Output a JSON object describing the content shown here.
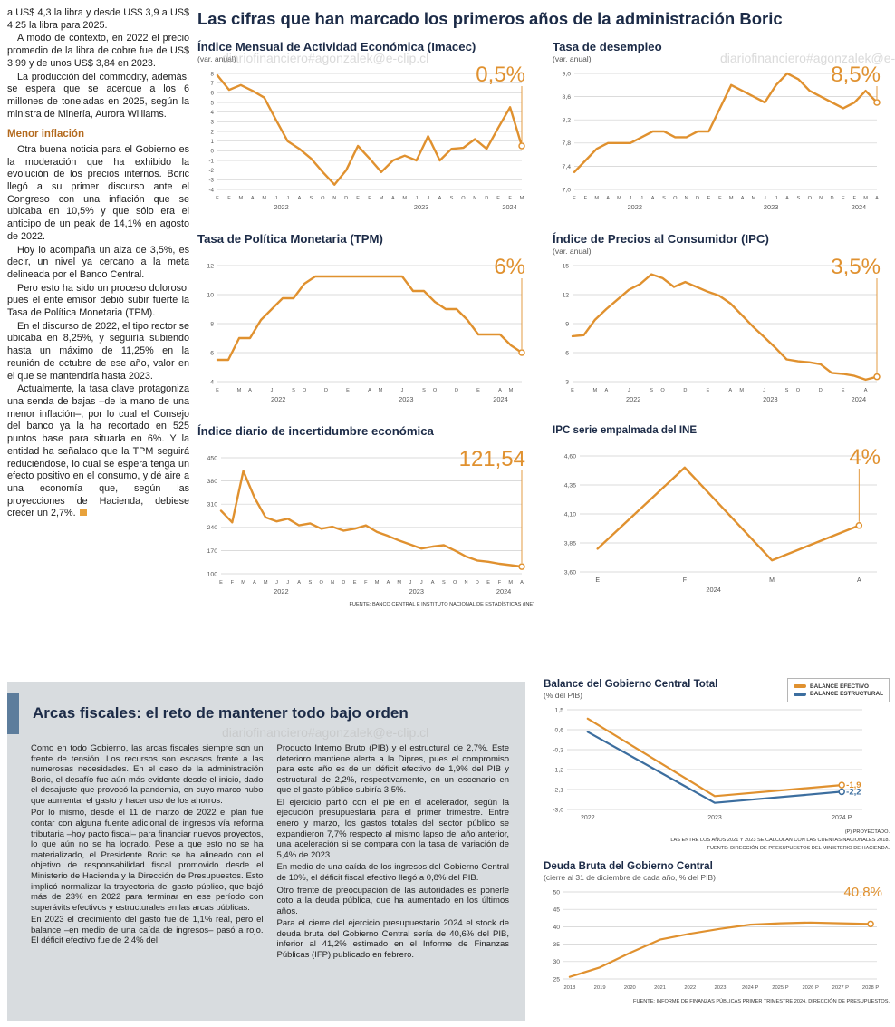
{
  "watermark": "diariofinanciero#agonzalek@e-clip.cl",
  "colors": {
    "accent_orange": "#E0912F",
    "line_blue": "#3C6E9F",
    "heading_navy": "#1C2B47",
    "subhead_orange": "#B36A1E",
    "box_gray": "#D8DCDF",
    "bar_blue": "#5D7D9C"
  },
  "article": {
    "paragraphs_top": [
      "a US$ 4,3 la libra y desde US$ 3,9 a US$ 4,25 la libra para 2025.",
      "A modo de contexto, en 2022 el precio promedio de la libra de cobre fue de US$ 3,99 y de unos US$ 3,84 en 2023.",
      "La producción del commodity, además, se espera que se acerque a los 6 millones de toneladas en 2025, según la ministra de Minería, Aurora Williams."
    ],
    "subheading": "Menor inflación",
    "paragraphs_bottom": [
      "Otra buena noticia para el Gobierno es la moderación que ha exhibido la evolución de los precios internos. Boric llegó a su primer discurso ante el Congreso con una inflación que se ubicaba en 10,5% y que sólo era el anticipo de un peak de 14,1% en agosto de 2022.",
      "Hoy lo acompaña un alza de 3,5%, es decir, un nivel ya cercano a la meta delineada por el Banco Central.",
      "Pero esto ha sido un proceso doloroso, pues el ente emisor debió subir fuerte la Tasa de Política Monetaria (TPM).",
      "En el discurso de 2022, el tipo rector se ubicaba en 8,25%, y seguiría subiendo hasta un máximo de 11,25% en la reunión de octubre de ese año, valor en el que se mantendría hasta 2023.",
      "Actualmente, la tasa clave protagoniza una senda de bajas –de la mano de una menor inflación–, por lo cual el Consejo del banco ya la ha recortado en 525 puntos base para situarla en 6%. Y la entidad ha señalado que la TPM seguirá reduciéndose, lo cual se espera tenga un efecto positivo en el consumo, y dé aire a una economía que, según las proyecciones de Hacienda, debiese crecer un 2,7%."
    ]
  },
  "main": {
    "title": "Las cifras que han marcado los primeros años de la administración Boric"
  },
  "fiscal": {
    "title": "Arcas fiscales: el reto de mantener todo bajo orden",
    "col1": [
      "Como en todo Gobierno, las arcas fiscales siempre son un frente de tensión. Los recursos son escasos frente a las numerosas necesidades. En el caso de la administración Boric, el desafío fue aún más evidente desde el inicio, dado el desajuste que provocó la pandemia, en cuyo marco hubo que aumentar el gasto y hacer uso de los ahorros.",
      "Por lo mismo, desde el 11 de marzo de 2022 el plan fue contar con alguna fuente adicional de ingresos vía reforma tributaria –hoy pacto fiscal– para financiar nuevos proyectos, lo que aún no se ha logrado. Pese a que esto no se ha materializado, el Presidente Boric se ha alineado con el objetivo de responsabilidad fiscal promovido desde el Ministerio de Hacienda y la Dirección de Presupuestos. Esto implicó normalizar la trayectoria del gasto público, que bajó más de 23% en 2022 para terminar en ese período con superávits efectivos y estructurales en las arcas públicas.",
      "En 2023 el crecimiento del gasto fue de 1,1% real, pero el balance –en medio de una caída de ingresos– pasó a rojo. El déficit efectivo fue de 2,4% del"
    ],
    "col2": [
      "Producto Interno Bruto (PIB) y el estructural de 2,7%. Este deterioro mantiene alerta a la Dipres, pues el compromiso para este año es de un déficit efectivo de 1,9% del PIB y estructural de 2,2%, respectivamente, en un escenario en que el gasto público subiría 3,5%.",
      "El ejercicio partió con el pie en el acelerador, según la ejecución presupuestaria para el primer trimestre. Entre enero y marzo, los gastos totales del sector público se expandieron 7,7% respecto al mismo lapso del año anterior, una aceleración si se compara con la tasa de variación de 5,4% de 2023.",
      "En medio de una caída de los ingresos del Gobierno Central de 10%, el déficit fiscal efectivo llegó a 0,8% del PIB.",
      "Otro frente de preocupación de las autoridades es ponerle coto a la deuda pública, que ha aumentado en los últimos años.",
      "Para el cierre del ejercicio presupuestario 2024 el stock de deuda bruta del Gobierno Central sería de 40,6% del PIB, inferior al 41,2% estimado en el Informe de Finanzas Públicas (IFP) publicado en febrero."
    ]
  },
  "chart_data": [
    {
      "type": "line",
      "title": "Índice Mensual de Actividad Económica (Imacec)",
      "subtitle": "(var. anual)",
      "big_value": "0,5%",
      "ymin": -4,
      "ymax": 8,
      "yticks": [
        8,
        7,
        6,
        5,
        4,
        3,
        2,
        1,
        0,
        -1,
        -2,
        -3,
        -4
      ],
      "x_labels": [
        "E",
        "F",
        "M",
        "A",
        "M",
        "J",
        "J",
        "A",
        "S",
        "O",
        "N",
        "D",
        "E",
        "F",
        "M",
        "A",
        "M",
        "J",
        "J",
        "A",
        "S",
        "O",
        "N",
        "D",
        "E",
        "F",
        "M"
      ],
      "years": [
        {
          "label": "2022",
          "pos": 0.21
        },
        {
          "label": "2023",
          "pos": 0.67
        },
        {
          "label": "2024",
          "pos": 0.96
        }
      ],
      "series": [
        {
          "name": "Imacec var. anual",
          "color": "#E0912F",
          "values": [
            7.8,
            6.3,
            6.8,
            6.2,
            5.5,
            3.2,
            1.0,
            0.2,
            -0.8,
            -2.2,
            -3.5,
            -2.0,
            0.5,
            -0.8,
            -2.2,
            -1.0,
            -0.5,
            -1.0,
            1.5,
            -1.0,
            0.2,
            0.3,
            1.2,
            0.2,
            2.4,
            4.5,
            0.5
          ]
        }
      ],
      "end_marker": true,
      "callout": true,
      "ml": 22,
      "yfs": 6.2
    },
    {
      "type": "line",
      "title": "Tasa de desempleo",
      "subtitle": "(var. anual)",
      "big_value": "8,5%",
      "ymin": 7.0,
      "ymax": 9.0,
      "yticks": [
        9.0,
        8.6,
        8.2,
        7.8,
        7.4,
        7.0
      ],
      "ytick_labels": [
        "9,0",
        "8,6",
        "8,2",
        "7,8",
        "7,4",
        "7,0"
      ],
      "x_labels": [
        "E",
        "F",
        "M",
        "A",
        "M",
        "J",
        "J",
        "A",
        "S",
        "O",
        "N",
        "D",
        "E",
        "F",
        "M",
        "A",
        "M",
        "J",
        "J",
        "A",
        "S",
        "O",
        "N",
        "D",
        "E",
        "F",
        "M",
        "A"
      ],
      "years": [
        {
          "label": "2022",
          "pos": 0.2
        },
        {
          "label": "2023",
          "pos": 0.65
        },
        {
          "label": "2024",
          "pos": 0.94
        }
      ],
      "series": [
        {
          "name": "Tasa de desempleo",
          "color": "#E0912F",
          "values": [
            7.3,
            7.5,
            7.7,
            7.8,
            7.8,
            7.8,
            7.9,
            8.0,
            8.0,
            7.9,
            7.9,
            8.0,
            8.0,
            8.4,
            8.8,
            8.7,
            8.6,
            8.5,
            8.8,
            9.0,
            8.9,
            8.7,
            8.6,
            8.5,
            8.4,
            8.5,
            8.7,
            8.5
          ]
        }
      ],
      "end_marker": true,
      "callout": true,
      "ml": 24
    },
    {
      "type": "line",
      "title": "Tasa de Política Monetaria (TPM)",
      "subtitle": "",
      "big_value": "6%",
      "ymin": 4,
      "ymax": 12,
      "yticks": [
        12,
        10,
        8,
        6,
        4
      ],
      "x_labels": [
        "E",
        "",
        "M",
        "A",
        "",
        "J",
        "",
        "S",
        "O",
        "",
        "D",
        "",
        "E",
        "",
        "A",
        "M",
        "",
        "J",
        "",
        "S",
        "O",
        "",
        "D",
        "",
        "E",
        "",
        "A",
        "M",
        ""
      ],
      "years": [
        {
          "label": "2022",
          "pos": 0.2
        },
        {
          "label": "2023",
          "pos": 0.62
        },
        {
          "label": "2024",
          "pos": 0.93
        }
      ],
      "series": [
        {
          "name": "TPM",
          "color": "#E0912F",
          "values": [
            5.5,
            5.5,
            7.0,
            7.0,
            8.25,
            9.0,
            9.75,
            9.75,
            10.75,
            11.25,
            11.25,
            11.25,
            11.25,
            11.25,
            11.25,
            11.25,
            11.25,
            11.25,
            10.25,
            10.25,
            9.5,
            9.0,
            9.0,
            8.25,
            7.25,
            7.25,
            7.25,
            6.5,
            6.0
          ]
        }
      ],
      "end_marker": true,
      "callout": true,
      "ml": 22
    },
    {
      "type": "line",
      "title": "Índice de Precios al Consumidor (IPC)",
      "subtitle": "(var. anual)",
      "big_value": "3,5%",
      "ymin": 3,
      "ymax": 15,
      "yticks": [
        15,
        12,
        9,
        6,
        3
      ],
      "x_labels": [
        "E",
        "",
        "M",
        "A",
        "",
        "J",
        "",
        "S",
        "O",
        "",
        "D",
        "",
        "E",
        "",
        "A",
        "M",
        "",
        "J",
        "",
        "S",
        "O",
        "",
        "D",
        "",
        "E",
        "",
        "A",
        ""
      ],
      "years": [
        {
          "label": "2022",
          "pos": 0.2
        },
        {
          "label": "2023",
          "pos": 0.65
        },
        {
          "label": "2024",
          "pos": 0.94
        }
      ],
      "series": [
        {
          "name": "IPC var. anual",
          "color": "#E0912F",
          "values": [
            7.7,
            7.8,
            9.4,
            10.5,
            11.5,
            12.5,
            13.1,
            14.1,
            13.7,
            12.8,
            13.3,
            12.8,
            12.3,
            11.9,
            11.1,
            9.9,
            8.7,
            7.6,
            6.5,
            5.3,
            5.1,
            5.0,
            4.8,
            3.9,
            3.8,
            3.6,
            3.2,
            3.5
          ]
        }
      ],
      "end_marker": true,
      "callout": true,
      "ml": 22
    },
    {
      "type": "line",
      "title": "Índice diario de incertidumbre económica",
      "subtitle": "",
      "big_value": "121,54",
      "ymin": 100,
      "ymax": 450,
      "yticks": [
        450,
        380,
        310,
        240,
        170,
        100
      ],
      "x_labels": [
        "E",
        "F",
        "M",
        "A",
        "M",
        "J",
        "J",
        "A",
        "S",
        "O",
        "N",
        "D",
        "E",
        "F",
        "M",
        "A",
        "M",
        "J",
        "J",
        "A",
        "S",
        "O",
        "N",
        "D",
        "E",
        "F",
        "M",
        "A"
      ],
      "years": [
        {
          "label": "2022",
          "pos": 0.2
        },
        {
          "label": "2023",
          "pos": 0.65
        },
        {
          "label": "2024",
          "pos": 0.94
        }
      ],
      "series": [
        {
          "name": "Incertidumbre económica",
          "color": "#E0912F",
          "values": [
            290,
            255,
            410,
            330,
            270,
            258,
            266,
            246,
            252,
            236,
            242,
            230,
            236,
            246,
            226,
            214,
            200,
            188,
            176,
            182,
            186,
            170,
            152,
            140,
            136,
            130,
            126,
            121.54
          ]
        }
      ],
      "end_marker": true,
      "callout": true,
      "ml": 26,
      "source": "FUENTE: BANCO CENTRAL E INSTITUTO NACIONAL DE ESTADÍSTICAS (INE)"
    },
    {
      "type": "line",
      "title": "IPC serie empalmada del INE",
      "subtitle": "",
      "big_value": "4%",
      "ymin": 3.6,
      "ymax": 4.6,
      "yticks": [
        4.6,
        4.35,
        4.1,
        3.85,
        3.6
      ],
      "ytick_labels": [
        "4,60",
        "4,35",
        "4,10",
        "3,85",
        "3,60"
      ],
      "x_labels": [
        "E",
        "F",
        "M",
        "A"
      ],
      "xfs": 7,
      "years": [
        {
          "label": "2024",
          "pos": 0.45
        }
      ],
      "series": [
        {
          "name": "IPC serie empalmada",
          "color": "#E0912F",
          "values": [
            3.8,
            4.5,
            3.7,
            4.0
          ]
        }
      ],
      "end_marker": true,
      "callout": true,
      "ml": 30,
      "inset": 0.06
    },
    {
      "type": "line",
      "title": "Balance del Gobierno Central Total",
      "subtitle": "(% del PIB)",
      "ymin": -3.0,
      "ymax": 1.5,
      "yticks": [
        1.5,
        0.6,
        -0.3,
        -1.2,
        -2.1,
        -3.0
      ],
      "ytick_labels": [
        "1,5",
        "0,6",
        "-0,3",
        "-1,2",
        "-2,1",
        "-3,0"
      ],
      "x_labels": [
        "2022",
        "2023",
        "2024 P"
      ],
      "xfs": 7,
      "mb": 14,
      "series": [
        {
          "name": "BALANCE EFECTIVO",
          "color": "#E0912F",
          "values": [
            1.1,
            -2.4,
            -1.9
          ],
          "end_label": "-1,9"
        },
        {
          "name": "BALANCE ESTRUCTURAL",
          "color": "#3C6E9F",
          "values": [
            0.5,
            -2.7,
            -2.2
          ],
          "end_label": "-2,2"
        }
      ],
      "end_marker": true,
      "callout": false,
      "ml": 26,
      "mr": 30,
      "inset": 0.07,
      "lw": 2.2,
      "footnotes": [
        "(P) PROYECTADO.",
        "LAS ENTRE LOS AÑOS 2021 Y 2023 SE CALCULAN  CON LAS CUENTAS NACIONALES 2018.",
        "FUENTE: DIRECCIÓN DE PRESUPUESTOS DEL MINISTERIO DE HACIENDA."
      ]
    },
    {
      "type": "line",
      "title": "Deuda Bruta del Gobierno Central",
      "subtitle": "(cierre al 31 de diciembre de cada año, % del PIB)",
      "big_value": "40,8%",
      "ymin": 25,
      "ymax": 50,
      "yticks": [
        50,
        45,
        40,
        35,
        30,
        25
      ],
      "x_labels": [
        "2018",
        "2019",
        "2020",
        "2021",
        "2022",
        "2023",
        "2024 P",
        "2025 P",
        "2026 P",
        "2027 P",
        "2028 P"
      ],
      "xfs": 5.8,
      "mb": 14,
      "series": [
        {
          "name": "Deuda bruta",
          "color": "#E0912F",
          "values": [
            25.6,
            28.3,
            32.5,
            36.3,
            38.0,
            39.4,
            40.6,
            41.0,
            41.2,
            41.0,
            40.8
          ]
        }
      ],
      "end_marker": true,
      "callout": false,
      "ml": 22,
      "lw": 2.2,
      "inset": 0.02,
      "footnote": "FUENTE: INFORME DE FINANZAS PÚBLICAS PRIMER TRIMESTRE 2024, DIRECCIÓN DE PRESUPUESTOS."
    }
  ]
}
